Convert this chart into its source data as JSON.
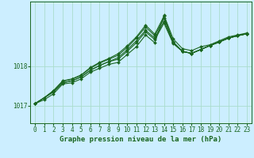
{
  "bg_color": "#cceeff",
  "grid_color": "#aaddcc",
  "line_color": "#1a6620",
  "marker_color": "#1a6620",
  "xlabel": "Graphe pression niveau de la mer (hPa)",
  "xlabel_fontsize": 6.5,
  "tick_fontsize": 5.5,
  "ytick_labels": [
    1017,
    1018
  ],
  "ylim": [
    1016.55,
    1019.65
  ],
  "xlim": [
    -0.5,
    23.5
  ],
  "series": [
    [
      1017.05,
      1017.15,
      1017.3,
      1017.55,
      1017.58,
      1017.68,
      1017.85,
      1017.95,
      1018.05,
      1018.1,
      1018.3,
      1018.5,
      1018.8,
      1018.6,
      1019.3,
      1018.7,
      1018.45,
      1018.4,
      1018.5,
      1018.55,
      1018.65,
      1018.75,
      1018.8,
      1018.85
    ],
    [
      1017.05,
      1017.2,
      1017.35,
      1017.58,
      1017.63,
      1017.73,
      1017.9,
      1018.02,
      1018.12,
      1018.18,
      1018.38,
      1018.6,
      1018.88,
      1018.68,
      1019.1,
      1018.58,
      1018.38,
      1018.33,
      1018.43,
      1018.53,
      1018.62,
      1018.72,
      1018.78,
      1018.83
    ],
    [
      1017.05,
      1017.2,
      1017.35,
      1017.58,
      1017.63,
      1017.73,
      1017.9,
      1018.02,
      1018.12,
      1018.22,
      1018.42,
      1018.65,
      1018.92,
      1018.72,
      1019.15,
      1018.6,
      1018.38,
      1018.33,
      1018.43,
      1018.53,
      1018.62,
      1018.72,
      1018.78,
      1018.83
    ],
    [
      1017.05,
      1017.2,
      1017.38,
      1017.62,
      1017.67,
      1017.77,
      1017.95,
      1018.08,
      1018.18,
      1018.28,
      1018.48,
      1018.72,
      1019.0,
      1018.78,
      1019.22,
      1018.62,
      1018.38,
      1018.33,
      1018.43,
      1018.53,
      1018.62,
      1018.72,
      1018.78,
      1018.83
    ],
    [
      1017.05,
      1017.2,
      1017.38,
      1017.63,
      1017.68,
      1017.78,
      1017.97,
      1018.1,
      1018.2,
      1018.32,
      1018.52,
      1018.75,
      1019.05,
      1018.82,
      1019.28,
      1018.62,
      1018.38,
      1018.33,
      1018.43,
      1018.53,
      1018.62,
      1018.72,
      1018.78,
      1018.83
    ]
  ]
}
